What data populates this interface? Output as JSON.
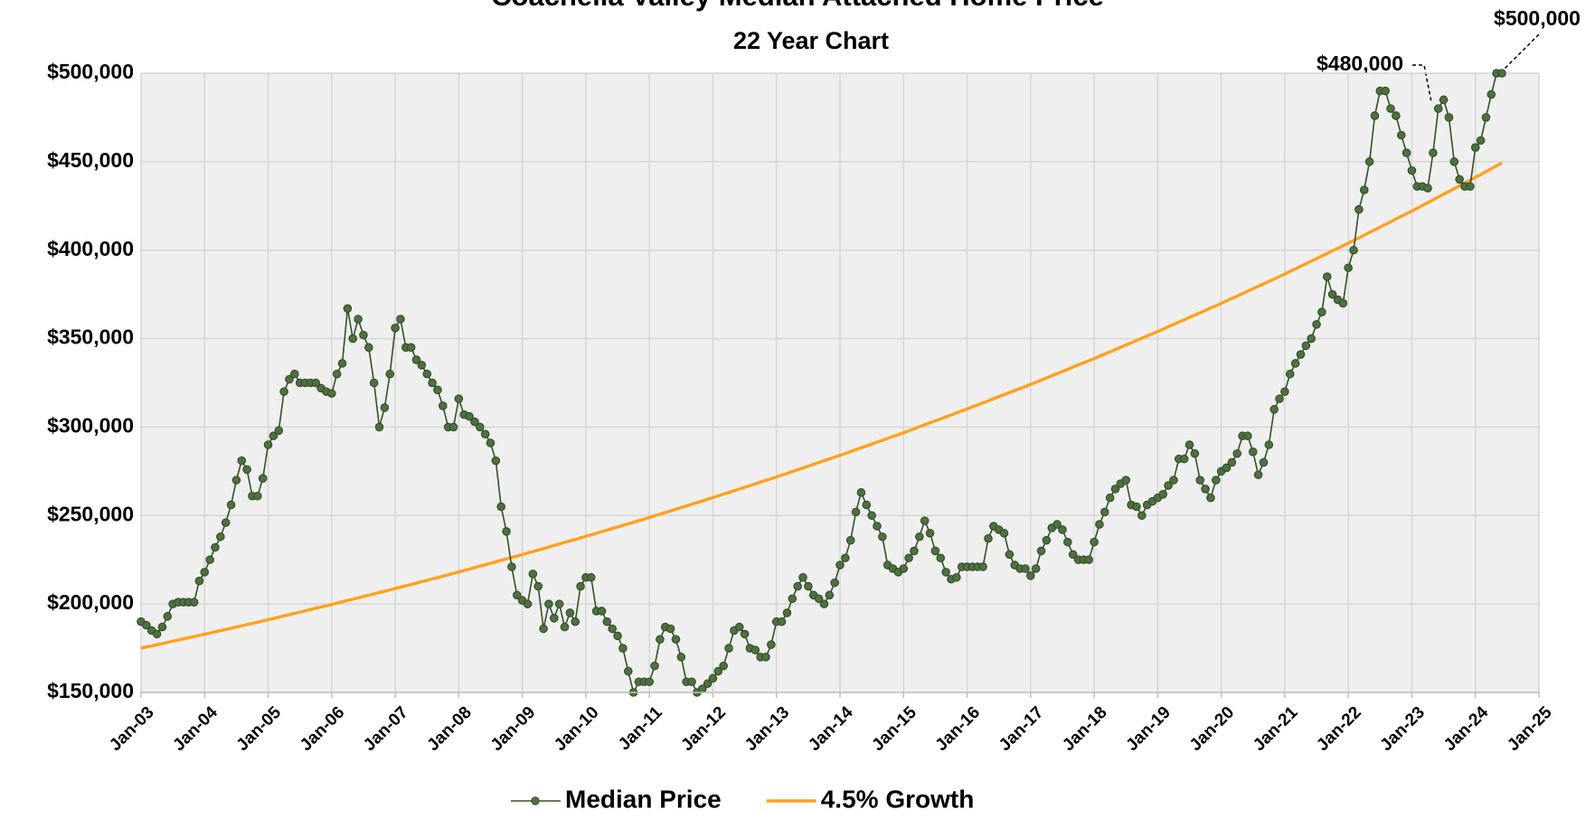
{
  "chart_data": {
    "type": "line",
    "title": "Coachella Valley Median Attached Home Price",
    "subtitle": "22 Year Chart",
    "annotations": [
      {
        "text": "$480,000"
      },
      {
        "text": "$500,000"
      }
    ],
    "x": [
      "2003-01",
      "2003-02",
      "2003-03",
      "2003-04",
      "2003-05",
      "2003-06",
      "2003-07",
      "2003-08",
      "2003-09",
      "2003-10",
      "2003-11",
      "2003-12",
      "2004-01",
      "2004-02",
      "2004-03",
      "2004-04",
      "2004-05",
      "2004-06",
      "2004-07",
      "2004-08",
      "2004-09",
      "2004-10",
      "2004-11",
      "2004-12",
      "2005-01",
      "2005-02",
      "2005-03",
      "2005-04",
      "2005-05",
      "2005-06",
      "2005-07",
      "2005-08",
      "2005-09",
      "2005-10",
      "2005-11",
      "2005-12",
      "2006-01",
      "2006-02",
      "2006-03",
      "2006-04",
      "2006-05",
      "2006-06",
      "2006-07",
      "2006-08",
      "2006-09",
      "2006-10",
      "2006-11",
      "2006-12",
      "2007-01",
      "2007-02",
      "2007-03",
      "2007-04",
      "2007-05",
      "2007-06",
      "2007-07",
      "2007-08",
      "2007-09",
      "2007-10",
      "2007-11",
      "2007-12",
      "2008-01",
      "2008-02",
      "2008-03",
      "2008-04",
      "2008-05",
      "2008-06",
      "2008-07",
      "2008-08",
      "2008-09",
      "2008-10",
      "2008-11",
      "2008-12",
      "2009-01",
      "2009-02",
      "2009-03",
      "2009-04",
      "2009-05",
      "2009-06",
      "2009-07",
      "2009-08",
      "2009-09",
      "2009-10",
      "2009-11",
      "2009-12",
      "2010-01",
      "2010-02",
      "2010-03",
      "2010-04",
      "2010-05",
      "2010-06",
      "2010-07",
      "2010-08",
      "2010-09",
      "2010-10",
      "2010-11",
      "2010-12",
      "2011-01",
      "2011-02",
      "2011-03",
      "2011-04",
      "2011-05",
      "2011-06",
      "2011-07",
      "2011-08",
      "2011-09",
      "2011-10",
      "2011-11",
      "2011-12",
      "2012-01",
      "2012-02",
      "2012-03",
      "2012-04",
      "2012-05",
      "2012-06",
      "2012-07",
      "2012-08",
      "2012-09",
      "2012-10",
      "2012-11",
      "2012-12",
      "2013-01",
      "2013-02",
      "2013-03",
      "2013-04",
      "2013-05",
      "2013-06",
      "2013-07",
      "2013-08",
      "2013-09",
      "2013-10",
      "2013-11",
      "2013-12",
      "2014-01",
      "2014-02",
      "2014-03",
      "2014-04",
      "2014-05",
      "2014-06",
      "2014-07",
      "2014-08",
      "2014-09",
      "2014-10",
      "2014-11",
      "2014-12",
      "2015-01",
      "2015-02",
      "2015-03",
      "2015-04",
      "2015-05",
      "2015-06",
      "2015-07",
      "2015-08",
      "2015-09",
      "2015-10",
      "2015-11",
      "2015-12",
      "2016-01",
      "2016-02",
      "2016-03",
      "2016-04",
      "2016-05",
      "2016-06",
      "2016-07",
      "2016-08",
      "2016-09",
      "2016-10",
      "2016-11",
      "2016-12",
      "2017-01",
      "2017-02",
      "2017-03",
      "2017-04",
      "2017-05",
      "2017-06",
      "2017-07",
      "2017-08",
      "2017-09",
      "2017-10",
      "2017-11",
      "2017-12",
      "2018-01",
      "2018-02",
      "2018-03",
      "2018-04",
      "2018-05",
      "2018-06",
      "2018-07",
      "2018-08",
      "2018-09",
      "2018-10",
      "2018-11",
      "2018-12",
      "2019-01",
      "2019-02",
      "2019-03",
      "2019-04",
      "2019-05",
      "2019-06",
      "2019-07",
      "2019-08",
      "2019-09",
      "2019-10",
      "2019-11",
      "2019-12",
      "2020-01",
      "2020-02",
      "2020-03",
      "2020-04",
      "2020-05",
      "2020-06",
      "2020-07",
      "2020-08",
      "2020-09",
      "2020-10",
      "2020-11",
      "2020-12",
      "2021-01",
      "2021-02",
      "2021-03",
      "2021-04",
      "2021-05",
      "2021-06",
      "2021-07",
      "2021-08",
      "2021-09",
      "2021-10",
      "2021-11",
      "2021-12",
      "2022-01",
      "2022-02",
      "2022-03",
      "2022-04",
      "2022-05",
      "2022-06",
      "2022-07",
      "2022-08",
      "2022-09",
      "2022-10",
      "2022-11",
      "2022-12",
      "2023-01",
      "2023-02",
      "2023-03",
      "2023-04",
      "2023-05",
      "2023-06",
      "2023-07",
      "2023-08",
      "2023-09",
      "2023-10",
      "2023-11",
      "2023-12",
      "2024-01",
      "2024-02",
      "2024-03",
      "2024-04",
      "2024-05",
      "2024-06"
    ],
    "series": [
      {
        "name": "Median Price",
        "color": "#34502a",
        "marker": true,
        "values": [
          190000,
          188000,
          185000,
          183000,
          187000,
          193000,
          200000,
          201000,
          201000,
          201000,
          201000,
          213000,
          218000,
          225000,
          232000,
          238000,
          246000,
          256000,
          270000,
          281000,
          276000,
          261000,
          261000,
          271000,
          290000,
          295000,
          298000,
          320000,
          327000,
          330000,
          325000,
          325000,
          325000,
          325000,
          322000,
          320000,
          319000,
          330000,
          336000,
          367000,
          350000,
          361000,
          352000,
          345000,
          325000,
          300000,
          311000,
          330000,
          356000,
          361000,
          345000,
          345000,
          338000,
          335000,
          330000,
          325000,
          321000,
          312000,
          300000,
          300000,
          316000,
          307000,
          306000,
          303000,
          300000,
          296000,
          291000,
          281000,
          255000,
          241000,
          221000,
          205000,
          202000,
          200000,
          217000,
          210000,
          186000,
          200000,
          192000,
          200000,
          187000,
          195000,
          190000,
          210000,
          215000,
          215000,
          196000,
          196000,
          190000,
          186000,
          182000,
          175000,
          162000,
          150000,
          156000,
          156000,
          156000,
          165000,
          180000,
          187000,
          186000,
          180000,
          170000,
          156000,
          156000,
          150000,
          152000,
          155000,
          158000,
          162000,
          165000,
          175000,
          185000,
          187000,
          183000,
          175000,
          174000,
          170000,
          170000,
          177000,
          190000,
          190000,
          195000,
          203000,
          210000,
          215000,
          210000,
          205000,
          203000,
          200000,
          205000,
          212000,
          222000,
          226000,
          236000,
          252000,
          263000,
          256000,
          250000,
          244000,
          238000,
          222000,
          220000,
          218000,
          220000,
          226000,
          230000,
          238000,
          247000,
          240000,
          230000,
          226000,
          218000,
          214000,
          215000,
          221000,
          221000,
          221000,
          221000,
          221000,
          237000,
          244000,
          242000,
          240000,
          228000,
          222000,
          220000,
          220000,
          216000,
          220000,
          230000,
          236000,
          243000,
          245000,
          242000,
          235000,
          228000,
          225000,
          225000,
          225000,
          235000,
          245000,
          252000,
          260000,
          265000,
          268000,
          270000,
          256000,
          255000,
          250000,
          256000,
          258000,
          260000,
          262000,
          267000,
          270000,
          282000,
          282000,
          290000,
          285000,
          270000,
          265000,
          260000,
          270000,
          275000,
          277000,
          280000,
          285000,
          295000,
          295000,
          286000,
          273000,
          280000,
          290000,
          310000,
          316000,
          320000,
          330000,
          336000,
          341000,
          346000,
          350000,
          358000,
          365000,
          385000,
          375000,
          372000,
          370000,
          390000,
          400000,
          423000,
          434000,
          450000,
          476000,
          490000,
          490000,
          480000,
          476000,
          465000,
          455000,
          445000,
          436000,
          436000,
          435000,
          455000,
          480000,
          485000,
          475000,
          450000,
          440000,
          436000,
          436000,
          458000,
          462000,
          475000,
          488000,
          500000,
          500000
        ]
      },
      {
        "name": "4.5% Growth",
        "color": "#ffa01c",
        "marker": false,
        "values": [
          175000,
          175700,
          176300,
          177000,
          177600,
          178300,
          179000,
          179600,
          180300,
          180900,
          181600,
          182200,
          182900,
          183600,
          184300,
          184900,
          185600,
          186300,
          187000,
          187700,
          188400,
          189000,
          189700,
          190400,
          191100,
          191800,
          192500,
          193300,
          194000,
          194700,
          195400,
          196100,
          196900,
          197600,
          198300,
          199000,
          199700,
          200500,
          201200,
          202000,
          202700,
          203500,
          204200,
          205000,
          205700,
          206500,
          207200,
          208000,
          208700,
          209500,
          210300,
          211000,
          211800,
          212600,
          213400,
          214200,
          214900,
          215700,
          216500,
          217300,
          218100,
          218900,
          219700,
          220600,
          221400,
          222200,
          223000,
          223800,
          224700,
          225500,
          226300,
          227100,
          227900,
          228800,
          229600,
          230500,
          231300,
          232200,
          233100,
          233900,
          234800,
          235600,
          236500,
          237400,
          238200,
          239100,
          240000,
          240900,
          241800,
          242700,
          243500,
          244400,
          245300,
          246200,
          247100,
          248000,
          248900,
          249800,
          250800,
          251700,
          252600,
          253600,
          254500,
          255400,
          256400,
          257300,
          258200,
          259200,
          260100,
          261100,
          262100,
          263000,
          264000,
          265000,
          266000,
          266900,
          267900,
          268900,
          269900,
          270800,
          271800,
          272800,
          273800,
          274900,
          275900,
          276900,
          277900,
          278900,
          280000,
          281000,
          282000,
          283000,
          284000,
          285100,
          286100,
          287200,
          288300,
          289300,
          290400,
          291500,
          292500,
          293600,
          294700,
          295700,
          296800,
          297900,
          299000,
          300200,
          301300,
          302400,
          303500,
          304600,
          305800,
          306900,
          308000,
          309100,
          310200,
          311400,
          312500,
          313700,
          314800,
          316000,
          317200,
          318300,
          319500,
          320600,
          321800,
          322900,
          324100,
          325300,
          326500,
          327800,
          329000,
          330200,
          331400,
          332600,
          333900,
          335100,
          336300,
          337500,
          338700,
          340000,
          341300,
          342500,
          343800,
          345100,
          346400,
          347600,
          348900,
          350200,
          351500,
          352700,
          354000,
          355300,
          356700,
          358000,
          359300,
          360600,
          362000,
          363300,
          364600,
          365900,
          367300,
          368600,
          369900,
          371300,
          372700,
          374000,
          375400,
          376800,
          378200,
          379600,
          380900,
          382300,
          383700,
          385100,
          386500,
          388000,
          389400,
          390900,
          392300,
          393800,
          395200,
          396700,
          398100,
          399600,
          401000,
          402500,
          403900,
          405400,
          406900,
          408500,
          410000,
          411500,
          413000,
          414500,
          416100,
          417600,
          419100,
          420600,
          422100,
          423700,
          425300,
          426800,
          428400,
          430000,
          431600,
          433200,
          434700,
          436300,
          437900,
          439500,
          441100,
          442700,
          444400,
          446000,
          447700,
          449300
        ]
      }
    ],
    "xlim": [
      "2003-01",
      "2025-01"
    ],
    "xticks": [
      {
        "value": "2003-01",
        "label": "Jan-03"
      },
      {
        "value": "2004-01",
        "label": "Jan-04"
      },
      {
        "value": "2005-01",
        "label": "Jan-05"
      },
      {
        "value": "2006-01",
        "label": "Jan-06"
      },
      {
        "value": "2007-01",
        "label": "Jan-07"
      },
      {
        "value": "2008-01",
        "label": "Jan-08"
      },
      {
        "value": "2009-01",
        "label": "Jan-09"
      },
      {
        "value": "2010-01",
        "label": "Jan-10"
      },
      {
        "value": "2011-01",
        "label": "Jan-11"
      },
      {
        "value": "2012-01",
        "label": "Jan-12"
      },
      {
        "value": "2013-01",
        "label": "Jan-13"
      },
      {
        "value": "2014-01",
        "label": "Jan-14"
      },
      {
        "value": "2015-01",
        "label": "Jan-15"
      },
      {
        "value": "2016-01",
        "label": "Jan-16"
      },
      {
        "value": "2017-01",
        "label": "Jan-17"
      },
      {
        "value": "2018-01",
        "label": "Jan-18"
      },
      {
        "value": "2019-01",
        "label": "Jan-19"
      },
      {
        "value": "2020-01",
        "label": "Jan-20"
      },
      {
        "value": "2021-01",
        "label": "Jan-21"
      },
      {
        "value": "2022-01",
        "label": "Jan-22"
      },
      {
        "value": "2023-01",
        "label": "Jan-23"
      },
      {
        "value": "2024-01",
        "label": "Jan-24"
      },
      {
        "value": "2025-01",
        "label": "Jan-25"
      }
    ],
    "ylim": [
      150000,
      500000
    ],
    "yticks": [
      {
        "value": 150000,
        "label": "$150,000"
      },
      {
        "value": 200000,
        "label": "$200,000"
      },
      {
        "value": 250000,
        "label": "$250,000"
      },
      {
        "value": 300000,
        "label": "$300,000"
      },
      {
        "value": 350000,
        "label": "$350,000"
      },
      {
        "value": 400000,
        "label": "$400,000"
      },
      {
        "value": 450000,
        "label": "$450,000"
      },
      {
        "value": 500000,
        "label": "$500,000"
      }
    ],
    "grid": true,
    "legend": "bottom"
  }
}
